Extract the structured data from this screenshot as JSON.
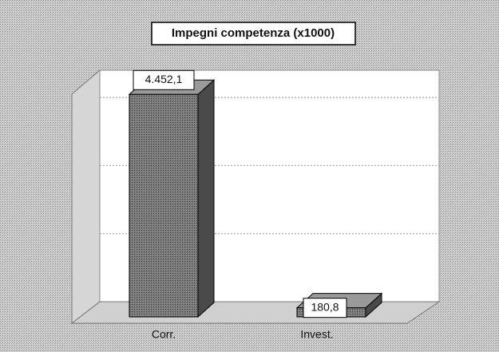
{
  "chart_data": {
    "type": "bar",
    "title": "Impegni competenza (x1000)",
    "categories": [
      "Corr.",
      "Invest."
    ],
    "values": [
      4452.1,
      180.8
    ],
    "value_labels": [
      "4.452,1",
      "180,8"
    ],
    "color": "#6e6e6e",
    "ylim": [
      0,
      5000
    ],
    "grid": true
  }
}
